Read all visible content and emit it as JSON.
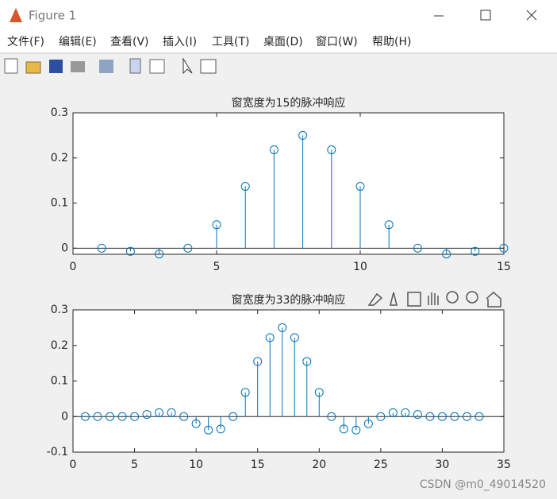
{
  "window": {
    "title": "Figure 1",
    "menu": [
      "文件(F)",
      "编辑(E)",
      "查看(V)",
      "插入(I)",
      "工具(T)",
      "桌面(D)",
      "窗口(W)",
      "帮助(H)"
    ]
  },
  "watermark": "CSDN @m0_49014520",
  "chart_data": [
    {
      "type": "stem",
      "title": "窗宽度为15的脉冲响应",
      "x": [
        1,
        2,
        3,
        4,
        5,
        6,
        7,
        8,
        9,
        10,
        11,
        12,
        13,
        14,
        15
      ],
      "values": [
        0,
        -0.007,
        -0.013,
        0,
        0.052,
        0.137,
        0.218,
        0.25,
        0.218,
        0.137,
        0.052,
        0,
        -0.013,
        -0.007,
        0
      ],
      "color": "#0072bd",
      "xlim": [
        0,
        15
      ],
      "xticks": [
        0,
        5,
        10,
        15
      ],
      "ylim": [
        -0.0135,
        0.3
      ],
      "yticks": [
        0,
        0.1,
        0.2,
        0.3
      ]
    },
    {
      "type": "stem",
      "title": "窗宽度为33的脉冲响应",
      "x": [
        1,
        2,
        3,
        4,
        5,
        6,
        7,
        8,
        9,
        10,
        11,
        12,
        13,
        14,
        15,
        16,
        17,
        18,
        19,
        20,
        21,
        22,
        23,
        24,
        25,
        26,
        27,
        28,
        29,
        30,
        31,
        32,
        33
      ],
      "values": [
        0,
        0,
        0,
        0,
        0,
        0.006,
        0.011,
        0.011,
        0,
        -0.02,
        -0.038,
        -0.035,
        0,
        0.068,
        0.155,
        0.222,
        0.25,
        0.222,
        0.155,
        0.068,
        0,
        -0.035,
        -0.038,
        -0.02,
        0,
        0.011,
        0.011,
        0.006,
        0,
        0,
        0,
        0,
        0
      ],
      "color": "#0072bd",
      "xlim": [
        0,
        35
      ],
      "xticks": [
        0,
        5,
        10,
        15,
        20,
        25,
        30,
        35
      ],
      "ylim": [
        -0.1,
        0.3
      ],
      "yticks": [
        -0.1,
        0,
        0.1,
        0.2,
        0.3
      ]
    }
  ]
}
